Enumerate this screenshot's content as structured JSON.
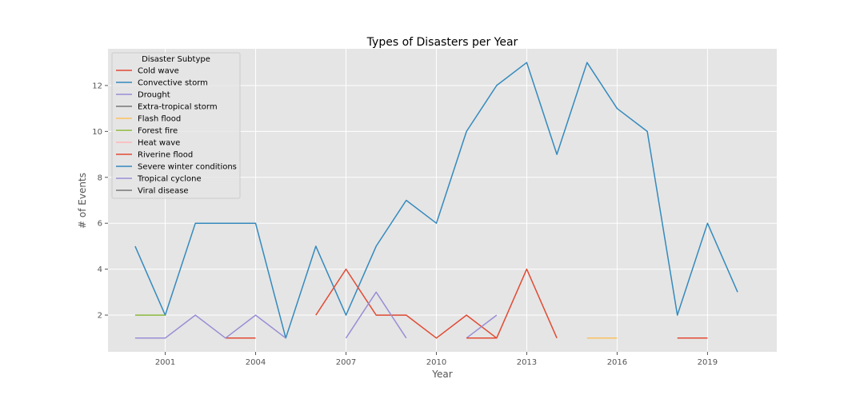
{
  "chart_data": {
    "type": "line",
    "title": "Types of Disasters per Year",
    "xlabel": "Year",
    "ylabel": "# of Events",
    "xlim": [
      1999.1,
      2021.3
    ],
    "ylim": [
      0.4,
      13.6
    ],
    "x_ticks": [
      2001,
      2004,
      2007,
      2010,
      2013,
      2016,
      2019
    ],
    "y_ticks": [
      2,
      4,
      6,
      8,
      10,
      12
    ],
    "grid": true,
    "legend": {
      "title": "Disaster Subtype",
      "position": "upper-left"
    },
    "series": [
      {
        "name": "Cold wave",
        "color": "#E24A33",
        "points": [
          [
            2003,
            1
          ],
          [
            2004,
            1
          ]
        ]
      },
      {
        "name": "Convective storm",
        "color": "#348ABD",
        "points": [
          [
            2000,
            5
          ],
          [
            2001,
            2
          ],
          [
            2002,
            6
          ],
          [
            2003,
            6
          ],
          [
            2004,
            6
          ],
          [
            2005,
            1
          ],
          [
            2006,
            5
          ],
          [
            2007,
            2
          ],
          [
            2008,
            5
          ],
          [
            2009,
            7
          ],
          [
            2010,
            6
          ],
          [
            2011,
            10
          ],
          [
            2012,
            12
          ],
          [
            2013,
            13
          ],
          [
            2014,
            9
          ],
          [
            2015,
            13
          ],
          [
            2016,
            11
          ],
          [
            2017,
            10
          ],
          [
            2018,
            2
          ],
          [
            2019,
            6
          ],
          [
            2020,
            3
          ]
        ]
      },
      {
        "name": "Drought",
        "color": "#988ED5",
        "points": [
          [
            2000,
            1
          ],
          [
            2001,
            1
          ],
          [
            2002,
            2
          ],
          [
            2003,
            1
          ],
          [
            2004,
            2
          ],
          [
            2005,
            1
          ]
        ]
      },
      {
        "name": "Extra-tropical storm",
        "color": "#777777",
        "points": []
      },
      {
        "name": "Flash flood",
        "color": "#FBC15E",
        "points": [
          [
            2015,
            1
          ],
          [
            2016,
            1
          ]
        ]
      },
      {
        "name": "Forest fire",
        "color": "#8EBA42",
        "points": [
          [
            2000,
            2
          ],
          [
            2001,
            2
          ]
        ]
      },
      {
        "name": "Heat wave",
        "color": "#FFB5B8",
        "points": []
      },
      {
        "name": "Riverine flood",
        "color": "#E24A33",
        "points": [
          [
            2006,
            2
          ],
          [
            2007,
            4
          ],
          [
            2008,
            2
          ],
          [
            2009,
            2
          ],
          [
            2010,
            1
          ],
          [
            2011,
            2
          ],
          [
            2012,
            1
          ],
          [
            2013,
            4
          ],
          [
            2014,
            1
          ]
        ]
      },
      {
        "name": "Severe winter conditions",
        "color": "#348ABD",
        "points": []
      },
      {
        "name": "Tropical cyclone",
        "color": "#988ED5",
        "points": [
          [
            2007,
            1
          ],
          [
            2008,
            3
          ],
          [
            2009,
            1
          ]
        ]
      },
      {
        "name": "Viral disease",
        "color": "#777777",
        "points": []
      },
      {
        "name": "Riverine flood (2018-2019)",
        "legend": false,
        "color": "#E24A33",
        "points": [
          [
            2018,
            1
          ],
          [
            2019,
            1
          ]
        ]
      },
      {
        "name": "Tropical cyclone (2011-2012)",
        "legend": false,
        "color": "#988ED5",
        "points": [
          [
            2011,
            1
          ],
          [
            2012,
            2
          ]
        ]
      },
      {
        "name": "Cold wave (2011-2012)",
        "legend": false,
        "color": "#E24A33",
        "points": [
          [
            2011,
            1
          ],
          [
            2012,
            1
          ]
        ]
      }
    ],
    "colors": {
      "plot_background": "#E5E5E5",
      "grid": "#FFFFFF",
      "legend_background": "#E5E5E5",
      "legend_border": "#CCCCCC"
    }
  }
}
